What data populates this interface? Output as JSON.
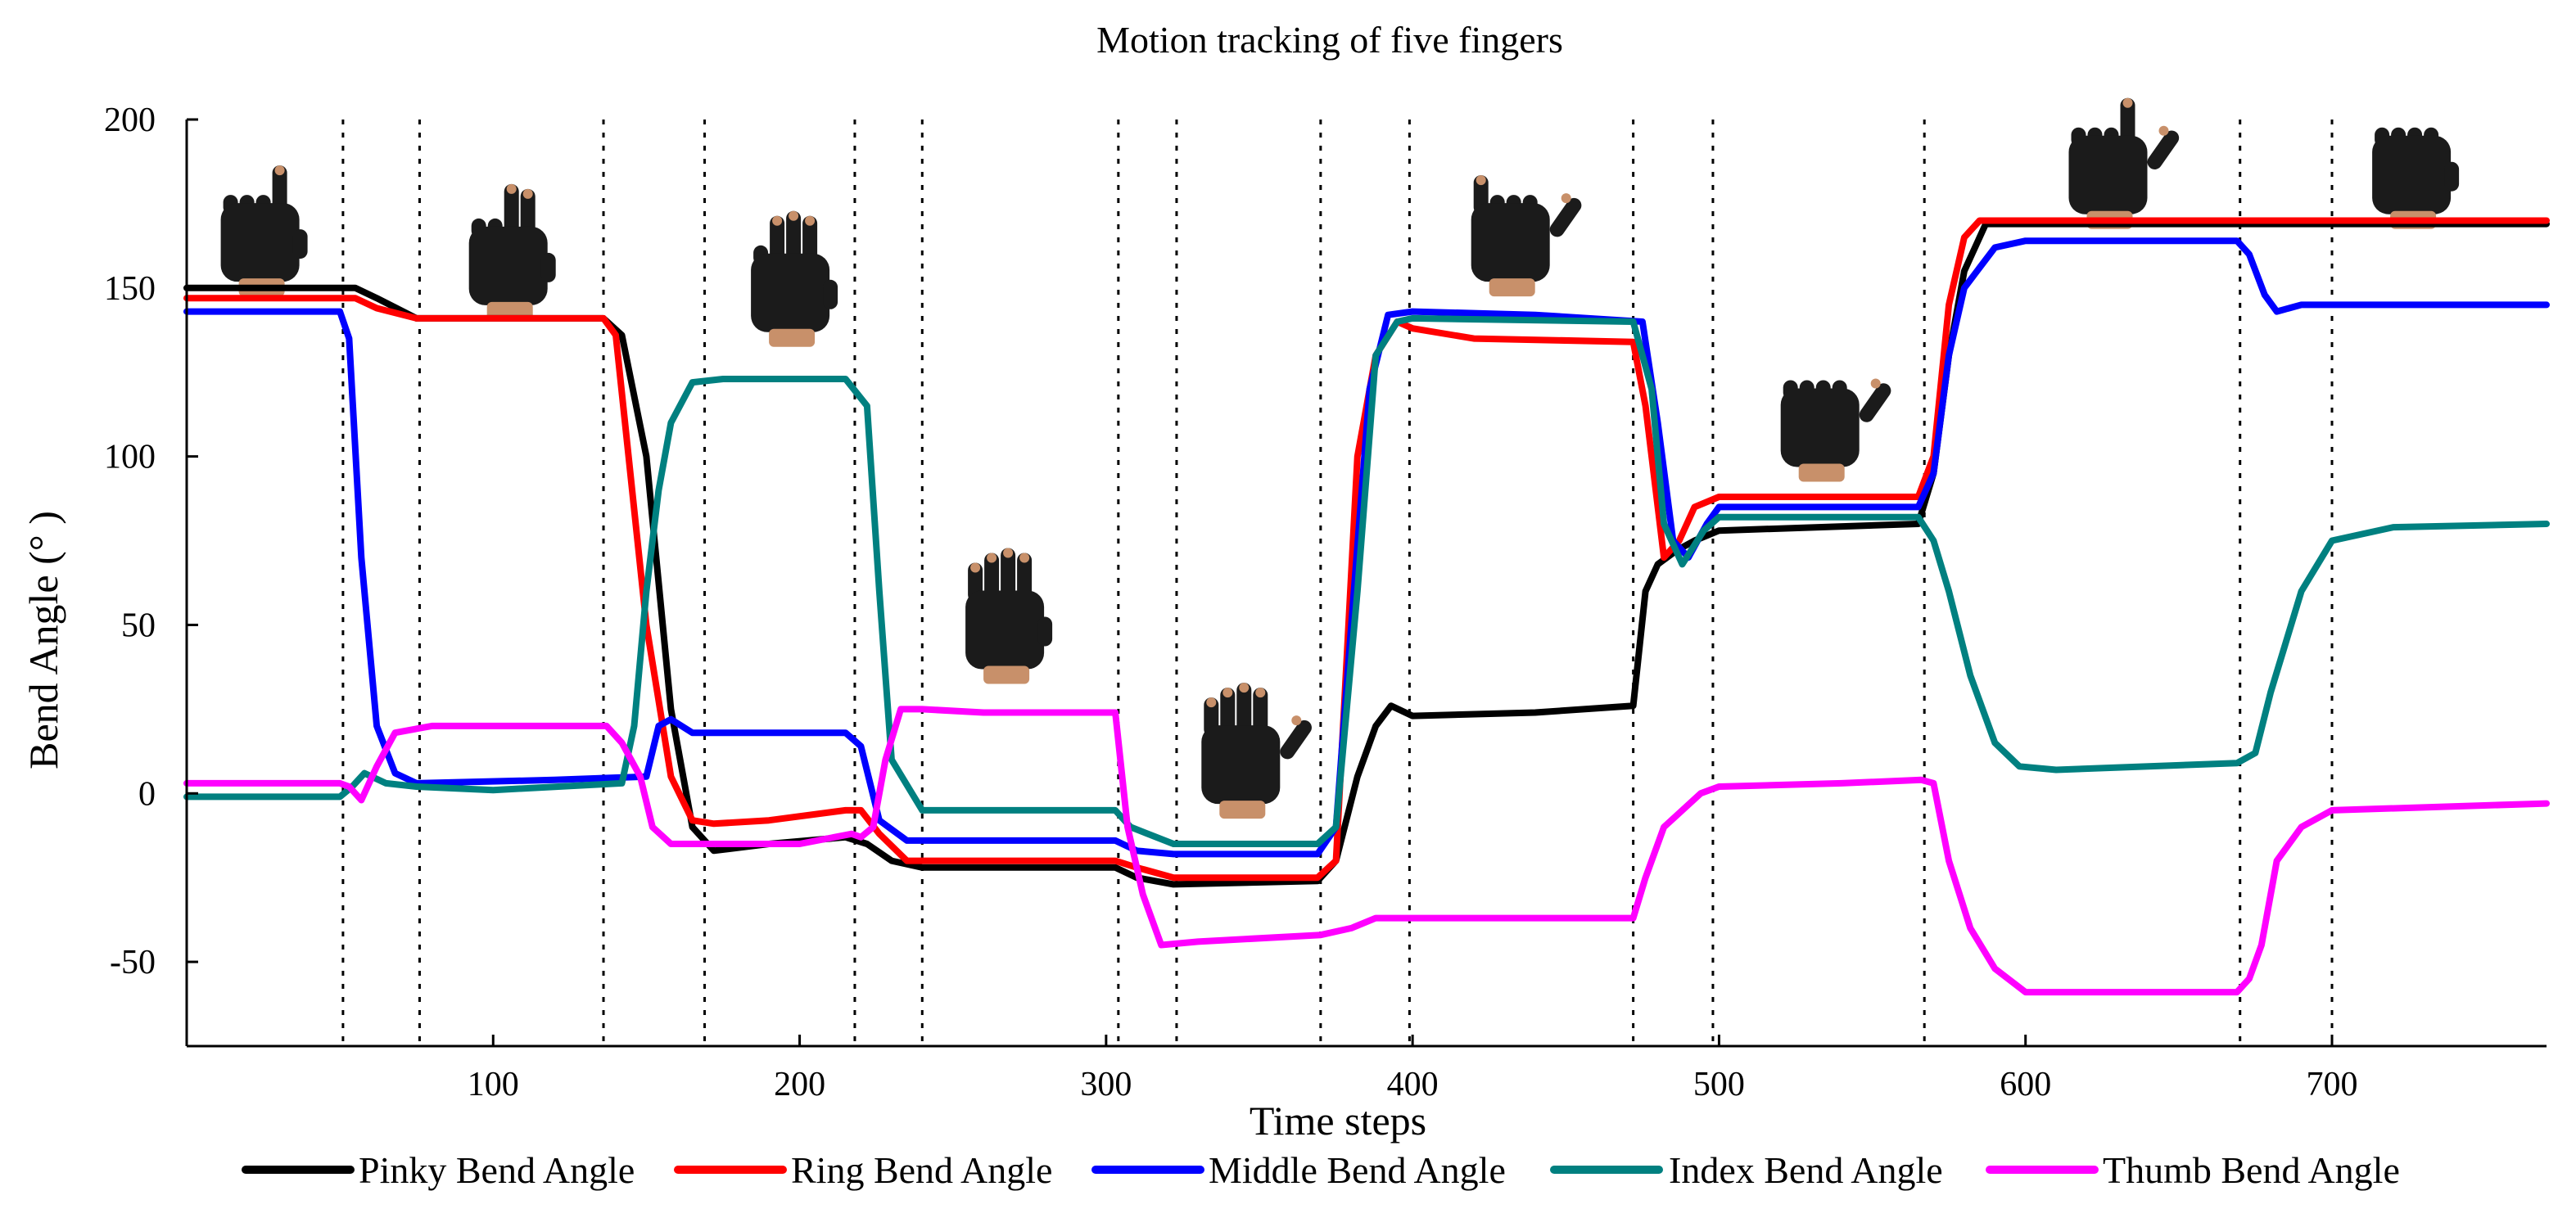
{
  "chart_data": {
    "type": "line",
    "title": "Motion tracking of five fingers",
    "xlabel": "Time steps",
    "ylabel": "Bend Angle (° )",
    "xlim": [
      0,
      770
    ],
    "ylim": [
      -75,
      200
    ],
    "x_ticks": [
      100,
      200,
      300,
      400,
      500,
      600,
      700
    ],
    "x_tick_labels": [
      "100",
      "200",
      "300",
      "400",
      "500",
      "600",
      "700"
    ],
    "y_ticks": [
      200,
      150,
      100,
      50,
      0,
      -50
    ],
    "y_tick_labels": [
      "200",
      "150",
      "100",
      "50",
      "0",
      "-50"
    ],
    "grid": false,
    "legend_position": "bottom",
    "phase_boundaries": [
      51,
      76,
      136,
      169,
      218,
      240,
      304,
      323,
      370,
      399,
      472,
      498,
      567,
      670,
      700
    ],
    "hand_images": [
      {
        "name": "hand-gesture-pointing",
        "x": 25,
        "y": 165
      },
      {
        "name": "hand-gesture-two-fingers",
        "x": 106,
        "y": 158
      },
      {
        "name": "hand-gesture-three-fingers",
        "x": 198,
        "y": 150
      },
      {
        "name": "hand-gesture-four-fingers",
        "x": 268,
        "y": 50
      },
      {
        "name": "hand-gesture-open-palm",
        "x": 345,
        "y": 10
      },
      {
        "name": "hand-gesture-shaka",
        "x": 433,
        "y": 165
      },
      {
        "name": "hand-gesture-fist-thumb",
        "x": 534,
        "y": 110
      },
      {
        "name": "hand-gesture-gun",
        "x": 628,
        "y": 185
      },
      {
        "name": "hand-gesture-fist",
        "x": 727,
        "y": 185
      }
    ],
    "series": [
      {
        "name": "Pinky Bend Angle",
        "color": "#000000",
        "x": [
          0,
          55,
          62,
          75,
          136,
          142,
          150,
          158,
          165,
          172,
          190,
          215,
          222,
          230,
          240,
          303,
          310,
          322,
          369,
          375,
          382,
          388,
          393,
          400,
          440,
          472,
          476,
          480,
          486,
          492,
          500,
          565,
          570,
          575,
          580,
          587,
          770
        ],
        "y": [
          150,
          150,
          147,
          141,
          141,
          136,
          100,
          25,
          -10,
          -17,
          -15,
          -13,
          -15,
          -20,
          -22,
          -22,
          -25,
          -27,
          -26,
          -20,
          5,
          20,
          26,
          23,
          24,
          26,
          60,
          68,
          72,
          75,
          78,
          80,
          95,
          130,
          155,
          169,
          169
        ]
      },
      {
        "name": "Ring Bend Angle",
        "color": "#ff0000",
        "x": [
          0,
          55,
          62,
          75,
          136,
          140,
          150,
          158,
          165,
          172,
          190,
          215,
          220,
          226,
          235,
          303,
          310,
          322,
          369,
          375,
          382,
          388,
          395,
          400,
          420,
          472,
          476,
          482,
          487,
          492,
          500,
          565,
          570,
          575,
          580,
          585,
          770
        ],
        "y": [
          147,
          147,
          144,
          141,
          141,
          136,
          50,
          5,
          -8,
          -9,
          -8,
          -5,
          -5,
          -12,
          -20,
          -20,
          -22,
          -25,
          -25,
          -20,
          100,
          130,
          140,
          138,
          135,
          134,
          115,
          70,
          75,
          85,
          88,
          88,
          100,
          145,
          165,
          170,
          170
        ]
      },
      {
        "name": "Middle Bend Angle",
        "color": "#0000ff",
        "x": [
          0,
          50,
          53,
          57,
          62,
          68,
          75,
          120,
          150,
          154,
          158,
          165,
          200,
          215,
          220,
          226,
          235,
          303,
          310,
          322,
          369,
          375,
          380,
          386,
          392,
          400,
          440,
          475,
          480,
          485,
          490,
          496,
          500,
          565,
          570,
          575,
          580,
          590,
          600,
          669,
          673,
          678,
          682,
          690,
          770
        ],
        "y": [
          143,
          143,
          135,
          70,
          20,
          6,
          3,
          4,
          5,
          20,
          22,
          18,
          18,
          18,
          14,
          -8,
          -14,
          -14,
          -17,
          -18,
          -18,
          -10,
          50,
          120,
          142,
          143,
          142,
          140,
          110,
          75,
          70,
          80,
          85,
          85,
          95,
          130,
          150,
          162,
          164,
          164,
          160,
          148,
          143,
          145,
          145
        ]
      },
      {
        "name": "Index Bend Angle",
        "color": "#008080",
        "x": [
          0,
          50,
          54,
          58,
          65,
          75,
          100,
          142,
          146,
          150,
          154,
          158,
          165,
          175,
          215,
          222,
          226,
          230,
          240,
          260,
          303,
          308,
          322,
          369,
          375,
          382,
          388,
          395,
          400,
          472,
          478,
          482,
          488,
          495,
          500,
          565,
          570,
          575,
          582,
          590,
          598,
          610,
          669,
          675,
          680,
          690,
          700,
          720,
          770
        ],
        "y": [
          -1,
          -1,
          2,
          6,
          3,
          2,
          1,
          3,
          20,
          60,
          90,
          110,
          122,
          123,
          123,
          115,
          60,
          10,
          -5,
          -5,
          -5,
          -10,
          -15,
          -15,
          -10,
          60,
          130,
          140,
          141,
          140,
          120,
          80,
          68,
          78,
          82,
          82,
          75,
          60,
          35,
          15,
          8,
          7,
          9,
          12,
          30,
          60,
          75,
          79,
          80
        ]
      },
      {
        "name": "Thumb Bend Angle",
        "color": "#ff00ff",
        "x": [
          0,
          50,
          53,
          57,
          62,
          68,
          80,
          120,
          137,
          142,
          148,
          152,
          158,
          165,
          200,
          217,
          220,
          224,
          228,
          233,
          240,
          260,
          303,
          307,
          312,
          318,
          330,
          370,
          380,
          388,
          400,
          472,
          476,
          482,
          488,
          494,
          500,
          540,
          566,
          570,
          575,
          582,
          590,
          600,
          669,
          673,
          677,
          682,
          690,
          700,
          770
        ],
        "y": [
          3,
          3,
          2,
          -2,
          8,
          18,
          20,
          20,
          20,
          15,
          5,
          -10,
          -15,
          -15,
          -15,
          -12,
          -13,
          -10,
          10,
          25,
          25,
          24,
          24,
          -10,
          -30,
          -45,
          -44,
          -42,
          -40,
          -37,
          -37,
          -37,
          -25,
          -10,
          -5,
          0,
          2,
          3,
          4,
          3,
          -20,
          -40,
          -52,
          -59,
          -59,
          -55,
          -45,
          -20,
          -10,
          -5,
          -3
        ]
      }
    ]
  }
}
